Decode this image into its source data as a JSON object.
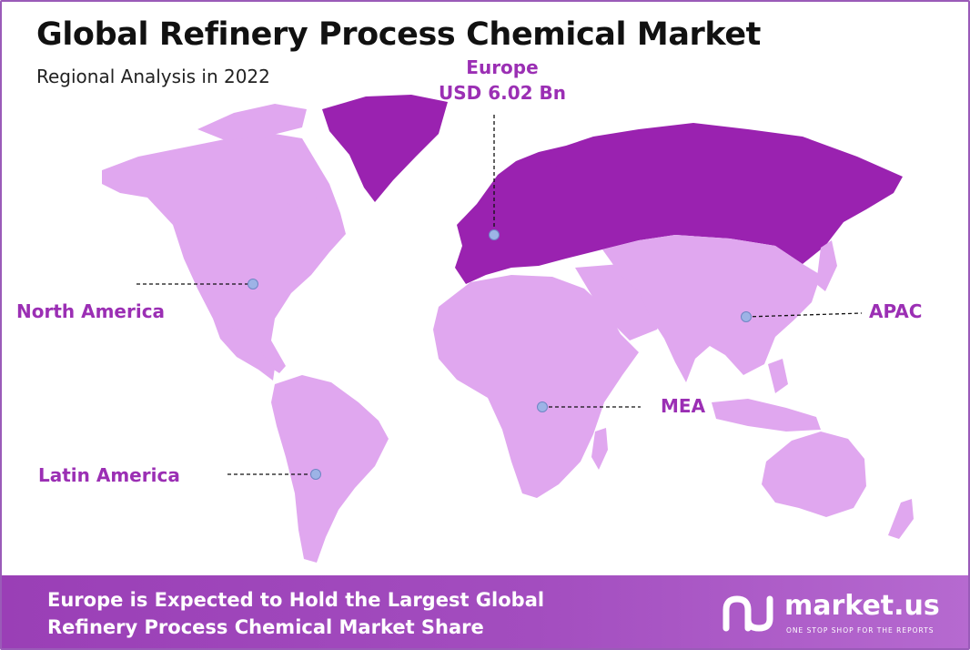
{
  "header": {
    "title": "Global Refinery Process Chemical Market",
    "subtitle": "Regional Analysis in 2022"
  },
  "regions": {
    "europe": {
      "name": "Europe",
      "value": "USD 6.02 Bn",
      "color": "#9a22b0"
    },
    "north_america": {
      "name": "North America",
      "color": "#e0a7ef"
    },
    "apac": {
      "name": "APAC",
      "color": "#e0a7ef"
    },
    "mea": {
      "name": "MEA",
      "color": "#e0a7ef"
    },
    "latin_america": {
      "name": "Latin America",
      "color": "#e0a7ef"
    }
  },
  "colors": {
    "highlight": "#9a22b0",
    "base_land": "#e0a7ef",
    "label": "#9b2fb4",
    "marker": "#9db3e6"
  },
  "footer": {
    "text": "Europe is Expected to Hold the Largest Global Refinery Process Chemical Market Share",
    "logo_name": "market.us",
    "logo_tagline": "ONE STOP SHOP FOR THE REPORTS"
  }
}
